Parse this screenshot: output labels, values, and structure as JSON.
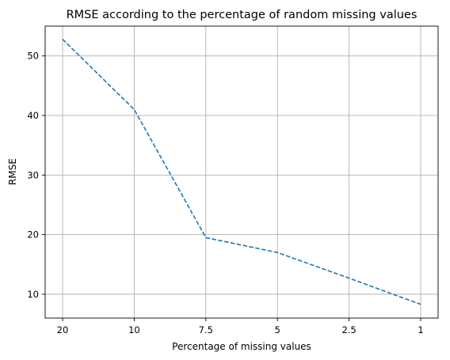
{
  "chart_data": {
    "type": "line",
    "title": "RMSE according to the percentage of random missing values",
    "xlabel": "Percentage of missing values",
    "ylabel": "RMSE",
    "categories": [
      "20",
      "10",
      "7.5",
      "5",
      "2.5",
      "1"
    ],
    "series": [
      {
        "values": [
          52.8,
          41.0,
          19.5,
          17.0,
          12.7,
          8.3
        ],
        "color": "#1f77b4",
        "line_style": "dashed"
      }
    ],
    "ylim": [
      6,
      55
    ],
    "yticks": [
      10,
      20,
      30,
      40,
      50
    ],
    "grid": true
  }
}
